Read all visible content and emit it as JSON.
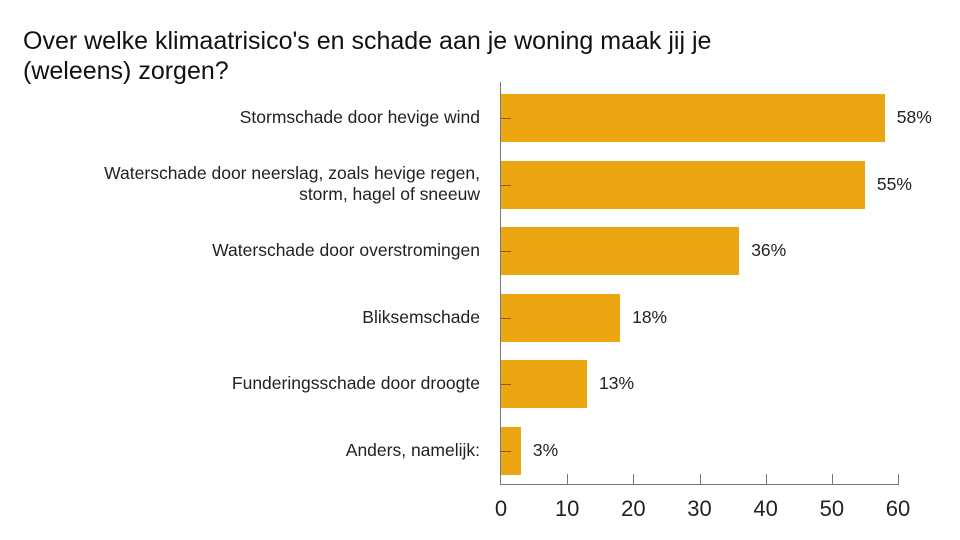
{
  "chart_data": {
    "type": "bar",
    "orientation": "horizontal",
    "title": "Over welke klimaatrisico's en schade aan je woning maak jij je (weleens) zorgen?",
    "categories": [
      "Stormschade door hevige wind",
      "Waterschade door neerslag, zoals hevige regen,\nstorm, hagel of sneeuw",
      "Waterschade door overstromingen",
      "Bliksemschade",
      "Funderingsschade door droogte",
      "Anders, namelijk:"
    ],
    "values": [
      58,
      55,
      36,
      18,
      13,
      3
    ],
    "value_labels": [
      "58%",
      "55%",
      "36%",
      "18%",
      "13%",
      "3%"
    ],
    "xlabel": "",
    "ylabel": "",
    "xlim": [
      0,
      60
    ],
    "xticks": [
      "0",
      "10",
      "20",
      "30",
      "40",
      "50",
      "60"
    ],
    "grid": false,
    "legend": null,
    "bar_color": "#EBA612"
  }
}
